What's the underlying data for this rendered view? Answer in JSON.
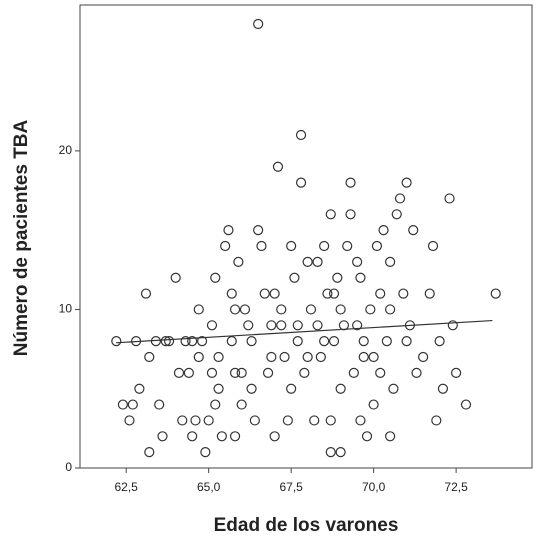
{
  "chart_data": {
    "type": "scatter",
    "xlabel": "Edad de los varones",
    "ylabel": "Número de pacientes TBA",
    "xlim": [
      61.1,
      74.8
    ],
    "ylim": [
      0,
      29.2
    ],
    "xticks": [
      {
        "value": 62.5,
        "label": "62,5"
      },
      {
        "value": 65.0,
        "label": "65,0"
      },
      {
        "value": 67.5,
        "label": "67,5"
      },
      {
        "value": 70.0,
        "label": "70,0"
      },
      {
        "value": 72.5,
        "label": "72,5"
      }
    ],
    "yticks": [
      0,
      10,
      20
    ],
    "grid": false,
    "color": "#333333",
    "points": {
      "x": [
        62.2,
        62.4,
        62.7,
        62.6,
        62.8,
        62.9,
        63.1,
        63.2,
        63.2,
        63.4,
        63.5,
        63.6,
        63.7,
        63.8,
        64.0,
        64.1,
        64.2,
        64.3,
        64.4,
        64.5,
        64.6,
        64.7,
        64.7,
        64.8,
        64.9,
        65.0,
        65.1,
        65.1,
        65.2,
        65.2,
        65.3,
        65.4,
        65.5,
        65.6,
        65.7,
        65.7,
        65.8,
        65.8,
        65.9,
        66.0,
        66.1,
        66.2,
        66.3,
        66.4,
        66.5,
        66.5,
        66.6,
        66.7,
        66.8,
        66.9,
        67.0,
        67.1,
        67.2,
        67.3,
        67.4,
        67.5,
        67.6,
        67.7,
        67.8,
        67.8,
        67.9,
        68.0,
        68.1,
        68.2,
        68.3,
        68.4,
        68.5,
        68.6,
        68.7,
        68.7,
        68.8,
        68.9,
        69.0,
        69.1,
        69.2,
        69.3,
        69.3,
        69.4,
        69.5,
        69.6,
        69.6,
        69.7,
        69.8,
        69.9,
        70.0,
        70.1,
        70.2,
        70.3,
        70.4,
        70.5,
        70.5,
        70.6,
        70.7,
        70.8,
        70.9,
        71.0,
        71.1,
        71.2,
        71.3,
        71.5,
        71.7,
        71.8,
        71.9,
        72.0,
        72.1,
        72.3,
        72.4,
        72.5,
        72.8,
        73.7,
        67.0,
        66.9,
        68.0,
        68.3,
        69.0,
        69.7,
        70.2,
        66.3,
        65.3,
        64.5,
        67.5,
        68.5,
        69.5,
        70.5,
        71.0,
        65.8,
        67.2,
        68.8,
        66.0,
        70.0,
        69.0,
        68.7,
        67.7
      ],
      "y": [
        8,
        4,
        4,
        3,
        8,
        5,
        11,
        1,
        7,
        8,
        4,
        2,
        8,
        8,
        12,
        6,
        3,
        8,
        6,
        2,
        3,
        10,
        7,
        8,
        1,
        3,
        6,
        9,
        12,
        4,
        7,
        2,
        14,
        15,
        11,
        8,
        6,
        2,
        13,
        4,
        10,
        9,
        8,
        3,
        15,
        28,
        14,
        11,
        6,
        9,
        2,
        19,
        10,
        7,
        3,
        14,
        12,
        8,
        21,
        18,
        6,
        13,
        10,
        3,
        9,
        7,
        14,
        11,
        16,
        1,
        8,
        12,
        5,
        9,
        14,
        18,
        16,
        6,
        13,
        3,
        12,
        8,
        2,
        10,
        7,
        14,
        11,
        15,
        8,
        13,
        2,
        5,
        16,
        17,
        11,
        18,
        9,
        15,
        6,
        7,
        11,
        14,
        3,
        8,
        5,
        17,
        9,
        6,
        4,
        11,
        11,
        7,
        7,
        13,
        10,
        7,
        6,
        5,
        5,
        8,
        5,
        8,
        9,
        10,
        8,
        10,
        9,
        11,
        6,
        4,
        1,
        3,
        9
      ]
    },
    "fit_line": {
      "x": [
        62.2,
        73.6
      ],
      "y": [
        7.9,
        9.3
      ]
    }
  }
}
